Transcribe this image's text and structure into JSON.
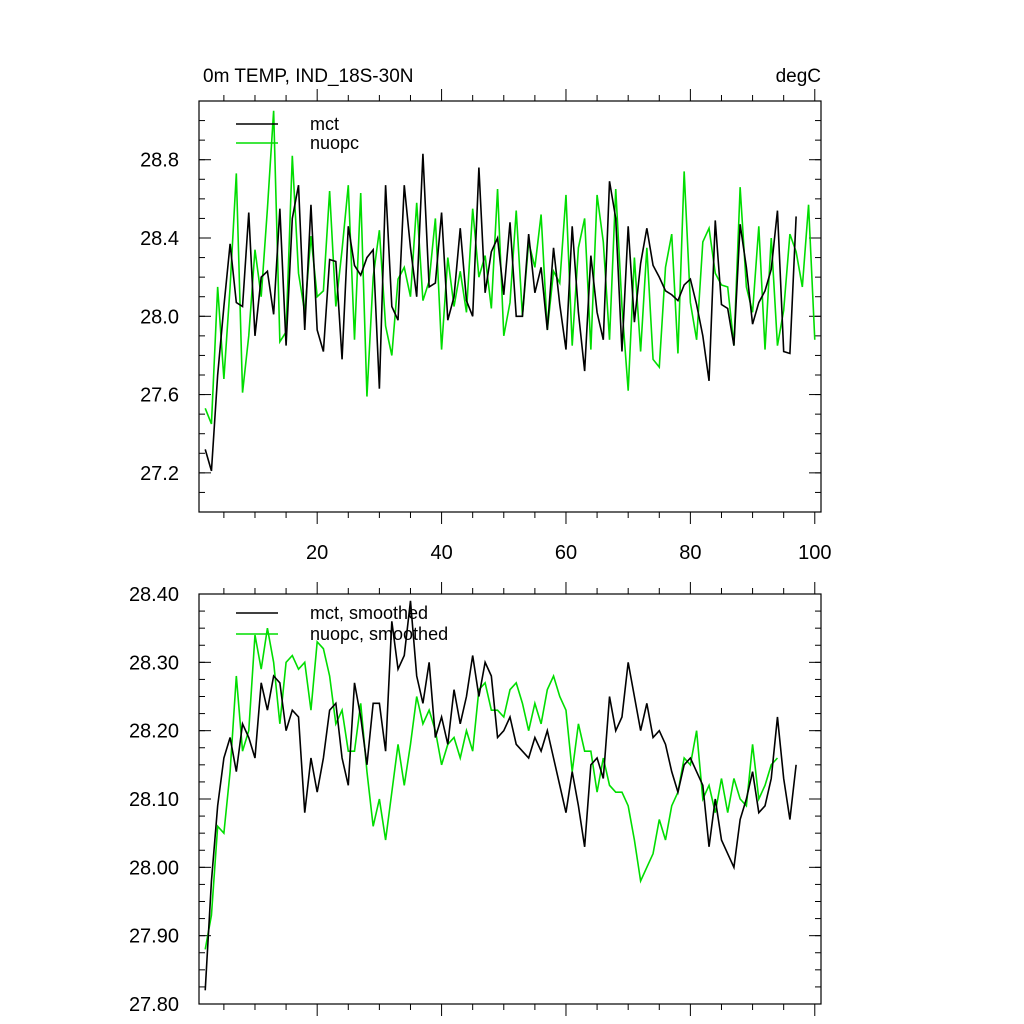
{
  "colors": {
    "mct": "#000000",
    "nuopc": "#00dd00"
  },
  "chart_data": [
    {
      "type": "line",
      "title": "0m TEMP, IND_18S-30N",
      "units": "degC",
      "xlim": [
        1,
        101
      ],
      "ylim": [
        27.0,
        29.1
      ],
      "x_ticks": [
        20,
        40,
        60,
        80,
        100
      ],
      "y_ticks": [
        27.2,
        27.6,
        28.0,
        28.4,
        28.8
      ],
      "y_tick_labels": [
        "27.2",
        "27.6",
        "28.0",
        "28.4",
        "28.8"
      ],
      "legend_position": "top-left",
      "series": [
        {
          "name": "mct",
          "color": "#000000",
          "values": [
            27.32,
            27.21,
            27.7,
            28.05,
            28.37,
            28.07,
            28.05,
            28.53,
            27.9,
            28.2,
            28.23,
            28.01,
            28.55,
            27.85,
            28.5,
            28.67,
            27.93,
            28.57,
            27.93,
            27.82,
            28.29,
            28.28,
            27.78,
            28.46,
            28.26,
            28.21,
            28.3,
            28.34,
            27.63,
            28.67,
            28.05,
            27.98,
            28.67,
            28.35,
            28.1,
            28.83,
            28.15,
            28.17,
            28.53,
            27.98,
            28.1,
            28.45,
            28.08,
            28.0,
            28.76,
            28.12,
            28.33,
            28.4,
            28.11,
            28.48,
            28.0,
            28.0,
            28.42,
            28.12,
            28.25,
            27.93,
            28.35,
            28.06,
            27.83,
            28.46,
            28.02,
            27.72,
            28.31,
            28.02,
            27.88,
            28.69,
            28.5,
            27.82,
            28.46,
            27.97,
            28.27,
            28.45,
            28.26,
            28.2,
            28.13,
            28.11,
            28.08,
            28.16,
            28.19,
            28.06,
            27.9,
            27.67,
            28.49,
            28.06,
            28.04,
            27.85,
            28.47,
            28.25,
            27.96,
            28.07,
            28.13,
            28.24,
            28.54,
            27.82,
            27.81,
            28.51
          ]
        },
        {
          "name": "nuopc",
          "color": "#00dd00",
          "values": [
            27.53,
            27.45,
            28.15,
            27.68,
            28.15,
            28.73,
            27.61,
            27.9,
            28.34,
            28.1,
            28.55,
            29.05,
            27.87,
            27.92,
            28.82,
            28.22,
            28.02,
            28.41,
            28.1,
            28.13,
            28.64,
            28.05,
            28.34,
            28.67,
            27.88,
            28.63,
            27.59,
            28.2,
            28.44,
            27.95,
            27.8,
            28.19,
            28.25,
            28.1,
            28.58,
            28.08,
            28.18,
            28.5,
            27.83,
            28.3,
            28.05,
            28.23,
            28.02,
            28.55,
            28.2,
            28.31,
            28.04,
            28.65,
            27.9,
            28.07,
            28.54,
            28.0,
            28.38,
            28.25,
            28.52,
            27.93,
            28.23,
            28.17,
            28.62,
            27.85,
            28.35,
            28.5,
            27.83,
            28.62,
            28.38,
            27.88,
            28.65,
            28.05,
            27.62,
            28.3,
            27.82,
            28.35,
            27.78,
            27.74,
            28.25,
            28.42,
            27.81,
            28.74,
            28.07,
            27.88,
            28.38,
            28.45,
            28.22,
            28.16,
            28.15,
            27.85,
            28.66,
            28.15,
            28.02,
            28.46,
            27.83,
            28.4,
            27.85,
            28.03,
            28.42,
            28.33,
            28.15,
            28.57,
            27.88
          ]
        }
      ]
    },
    {
      "type": "line",
      "xlim": [
        1,
        101
      ],
      "ylim": [
        27.8,
        28.4
      ],
      "x_ticks": [
        20,
        40,
        60,
        80,
        100
      ],
      "y_ticks": [
        27.8,
        27.9,
        28.0,
        28.1,
        28.2,
        28.3,
        28.4
      ],
      "y_tick_labels": [
        "27.80",
        "27.90",
        "28.00",
        "28.10",
        "28.20",
        "28.30",
        "28.40"
      ],
      "legend_position": "top-left",
      "series": [
        {
          "name": "mct, smoothed",
          "color": "#000000",
          "values": [
            27.82,
            27.98,
            28.09,
            28.16,
            28.19,
            28.14,
            28.21,
            28.19,
            28.16,
            28.27,
            28.23,
            28.28,
            28.27,
            28.2,
            28.23,
            28.22,
            28.08,
            28.16,
            28.11,
            28.16,
            28.23,
            28.24,
            28.16,
            28.12,
            28.27,
            28.22,
            28.15,
            28.24,
            28.24,
            28.17,
            28.36,
            28.29,
            28.31,
            28.39,
            28.28,
            28.24,
            28.3,
            28.19,
            28.22,
            28.18,
            28.26,
            28.21,
            28.25,
            28.31,
            28.25,
            28.3,
            28.28,
            28.19,
            28.2,
            28.22,
            28.18,
            28.17,
            28.16,
            28.19,
            28.17,
            28.2,
            28.16,
            28.12,
            28.08,
            28.14,
            28.09,
            28.03,
            28.15,
            28.16,
            28.13,
            28.25,
            28.2,
            28.22,
            28.3,
            28.25,
            28.2,
            28.24,
            28.19,
            28.2,
            28.18,
            28.14,
            28.11,
            28.15,
            28.16,
            28.14,
            28.12,
            28.03,
            28.1,
            28.04,
            28.02,
            28.0,
            28.07,
            28.1,
            28.14,
            28.08,
            28.09,
            28.13,
            28.22,
            28.13,
            28.07,
            28.15
          ]
        },
        {
          "name": "nuopc, smoothed",
          "color": "#00dd00",
          "values": [
            27.88,
            27.93,
            28.06,
            28.05,
            28.14,
            28.28,
            28.17,
            28.2,
            28.34,
            28.29,
            28.35,
            28.3,
            28.21,
            28.3,
            28.31,
            28.29,
            28.3,
            28.23,
            28.33,
            28.32,
            28.28,
            28.21,
            28.23,
            28.17,
            28.17,
            28.24,
            28.14,
            28.06,
            28.1,
            28.04,
            28.11,
            28.18,
            28.12,
            28.18,
            28.25,
            28.21,
            28.23,
            28.2,
            28.15,
            28.18,
            28.19,
            28.16,
            28.2,
            28.17,
            28.26,
            28.27,
            28.23,
            28.23,
            28.22,
            28.26,
            28.27,
            28.24,
            28.2,
            28.24,
            28.21,
            28.26,
            28.28,
            28.25,
            28.23,
            28.14,
            28.21,
            28.17,
            28.17,
            28.11,
            28.16,
            28.12,
            28.11,
            28.11,
            28.09,
            28.04,
            27.98,
            28.0,
            28.02,
            28.07,
            28.04,
            28.09,
            28.11,
            28.16,
            28.15,
            28.2,
            28.1,
            28.12,
            28.08,
            28.13,
            28.08,
            28.13,
            28.1,
            28.09,
            28.18,
            28.1,
            28.12,
            28.15,
            28.16
          ]
        }
      ]
    }
  ]
}
